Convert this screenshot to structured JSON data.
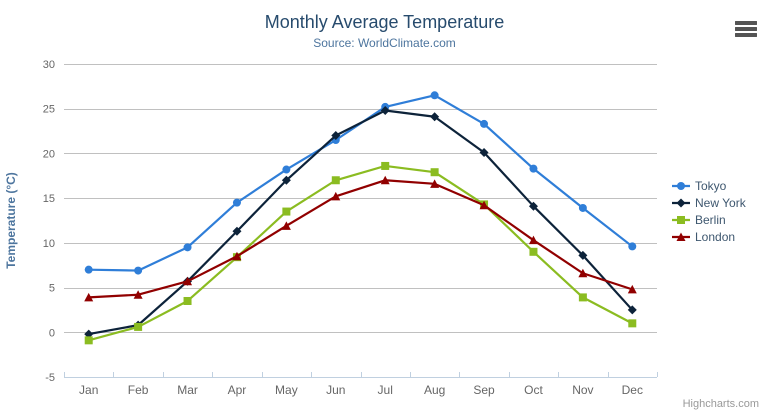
{
  "header": {
    "title": "Monthly Average Temperature",
    "subtitle": "Source: WorldClimate.com"
  },
  "icons": {
    "context_menu": "hamburger-menu-icon"
  },
  "credits": {
    "label": "Highcharts.com"
  },
  "chart_data": {
    "type": "line",
    "title": "Monthly Average Temperature",
    "subtitle": "Source: WorldClimate.com",
    "categories": [
      "Jan",
      "Feb",
      "Mar",
      "Apr",
      "May",
      "Jun",
      "Jul",
      "Aug",
      "Sep",
      "Oct",
      "Nov",
      "Dec"
    ],
    "series": [
      {
        "name": "Tokyo",
        "color": "#2f7ed8",
        "marker": "circle",
        "values": [
          7.0,
          6.9,
          9.5,
          14.5,
          18.2,
          21.5,
          25.2,
          26.5,
          23.3,
          18.3,
          13.9,
          9.6
        ]
      },
      {
        "name": "New York",
        "color": "#0d233a",
        "marker": "diamond",
        "values": [
          -0.2,
          0.8,
          5.7,
          11.3,
          17.0,
          22.0,
          24.8,
          24.1,
          20.1,
          14.1,
          8.6,
          2.5
        ]
      },
      {
        "name": "Berlin",
        "color": "#8bbc21",
        "marker": "square",
        "values": [
          -0.9,
          0.6,
          3.5,
          8.4,
          13.5,
          17.0,
          18.6,
          17.9,
          14.3,
          9.0,
          3.9,
          1.0
        ]
      },
      {
        "name": "London",
        "color": "#910000",
        "marker": "triangle",
        "values": [
          3.9,
          4.2,
          5.7,
          8.5,
          11.9,
          15.2,
          17.0,
          16.6,
          14.2,
          10.3,
          6.6,
          4.8
        ]
      }
    ],
    "xlabel": "",
    "ylabel": "Temperature (°C)",
    "ylim": [
      -5,
      30
    ],
    "yticks": [
      -5,
      0,
      5,
      10,
      15,
      20,
      25,
      30
    ],
    "grid": true,
    "legend_position": "right"
  },
  "style_colors": {
    "grid_line": "#c0c0c0",
    "axis_line": "#c0d0e0",
    "tick": "#c0d0e0",
    "axis_label": "#666666",
    "axis_title": "#4d759e",
    "title": "#274b6d",
    "subtitle": "#4d759e",
    "legend_text": "#3e576f",
    "credits_text": "#999999",
    "menu_icon": "#545454"
  }
}
